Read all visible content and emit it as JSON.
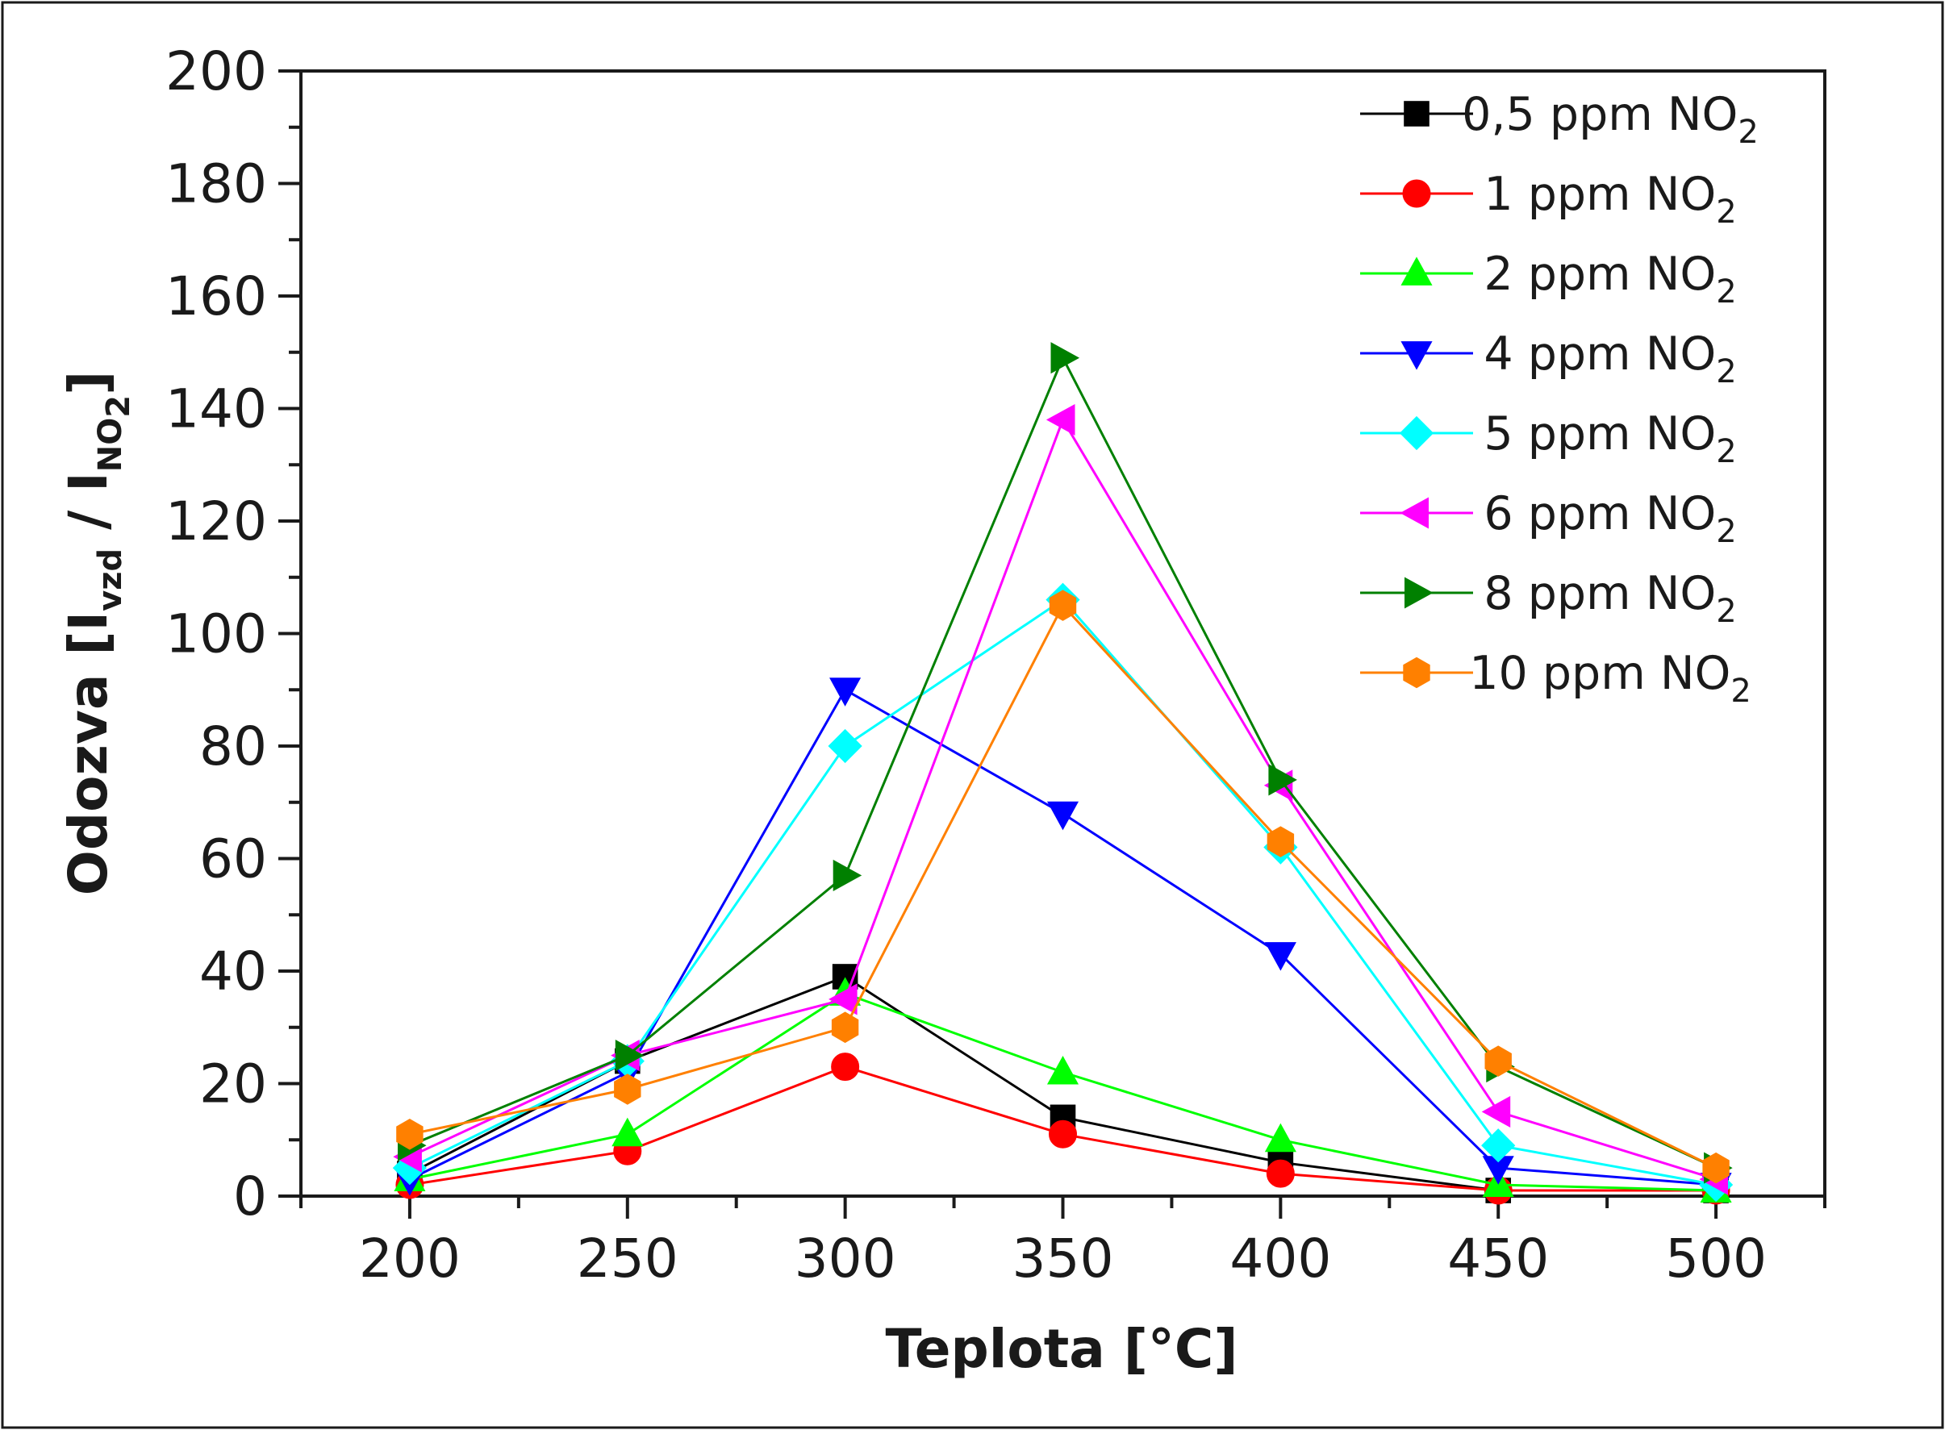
{
  "chart_data": {
    "type": "line",
    "title": "",
    "xlabel": "Teplota [°C]",
    "ylabel": {
      "prefix": "Odozva [I",
      "sub1": "vzd",
      "middle": " / I",
      "sub2": "NO",
      "sub2b": "2",
      "suffix": "]"
    },
    "xlim": [
      175,
      525
    ],
    "ylim": [
      0,
      200
    ],
    "x": [
      200,
      250,
      300,
      350,
      400,
      450,
      500
    ],
    "xticks": [
      "200",
      "250",
      "300",
      "350",
      "400",
      "450",
      "500"
    ],
    "yticks": [
      "0",
      "20",
      "40",
      "60",
      "80",
      "100",
      "120",
      "140",
      "160",
      "180",
      "200"
    ],
    "grid": false,
    "legend_position": "top-right",
    "series": [
      {
        "name": "0,5 ppm NO",
        "name_sub": "2",
        "color": "#000000",
        "marker": "square",
        "values": [
          4,
          24,
          39,
          14,
          6,
          1,
          1
        ]
      },
      {
        "name": "1 ppm NO",
        "name_sub": "2",
        "color": "#ff0000",
        "marker": "circle",
        "values": [
          2,
          8,
          23,
          11,
          4,
          1,
          1
        ]
      },
      {
        "name": "2 ppm NO",
        "name_sub": "2",
        "color": "#00ff00",
        "marker": "triangle-up",
        "values": [
          3,
          11,
          36,
          22,
          10,
          2,
          1
        ]
      },
      {
        "name": "4 ppm NO",
        "name_sub": "2",
        "color": "#0000ff",
        "marker": "triangle-down",
        "values": [
          3,
          22,
          90,
          68,
          43,
          5,
          2
        ]
      },
      {
        "name": "5 ppm NO",
        "name_sub": "2",
        "color": "#00ffff",
        "marker": "diamond",
        "values": [
          5,
          24,
          80,
          106,
          62,
          9,
          2
        ]
      },
      {
        "name": "6 ppm NO",
        "name_sub": "2",
        "color": "#ff00ff",
        "marker": "triangle-left",
        "values": [
          7,
          25,
          35,
          138,
          73,
          15,
          3
        ]
      },
      {
        "name": "8 ppm NO",
        "name_sub": "2",
        "color": "#008000",
        "marker": "triangle-right",
        "values": [
          9,
          25,
          57,
          149,
          74,
          23,
          5
        ]
      },
      {
        "name": "10 ppm NO",
        "name_sub": "2",
        "color": "#ff8000",
        "marker": "hexagon",
        "values": [
          11,
          19,
          30,
          105,
          63,
          24,
          5
        ]
      }
    ]
  }
}
